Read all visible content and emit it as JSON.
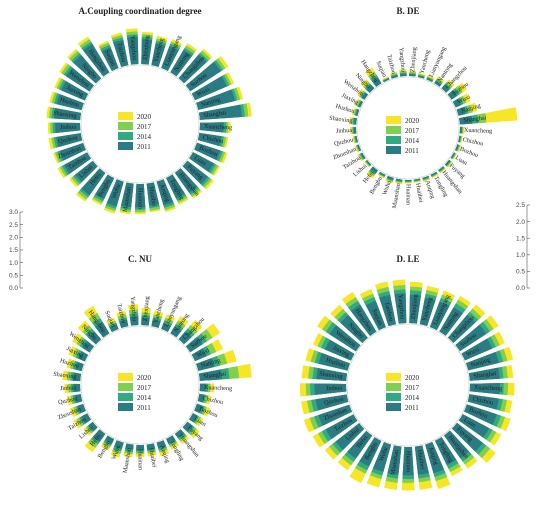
{
  "colors": {
    "2020": "#f7e626",
    "2017": "#7fcf50",
    "2014": "#31a981",
    "2011": "#2a7b84"
  },
  "legend": [
    "2020",
    "2017",
    "2014",
    "2011"
  ],
  "cities": [
    "Yangzhou",
    "Zhenjiang",
    "Yancheng",
    "Lianyungang",
    "Nantong",
    "Changzhou",
    "Suzhou",
    "Wuxi",
    "Nanjing",
    "Shanghai",
    "Xuancheng",
    "Chizhou",
    "Bozhou",
    "Luan",
    "Fuyang",
    "Huangshan",
    "Tongling",
    "Anqing",
    "Huaibei",
    "Huainan",
    "Maanshan",
    "Wuhu",
    "Bengbu",
    "Hefei",
    "Lishui",
    "Taizhou",
    "Zhoushan",
    "Quzhou",
    "Jinhua",
    "Shaoxing",
    "Huzhou",
    "Jiaxing",
    "Wenzhou",
    "Ningbo",
    "Hangzhou",
    "Suqian",
    "Taizhou"
  ],
  "scales": [
    {
      "ticks": [
        "3.0",
        "2.5",
        "2.0",
        "1.5",
        "1.0",
        "0.5",
        "0.0"
      ]
    },
    {
      "ticks": [
        "2.5",
        "2.0",
        "1.5",
        "1.0",
        "0.5",
        "0.0"
      ]
    }
  ],
  "chart_data": [
    {
      "type": "radial-bar",
      "title": "A.Coupling coordination degree",
      "series": [
        {
          "name": "2011",
          "values": [
            0.55,
            0.5,
            0.45,
            0.47,
            0.52,
            0.62,
            0.74,
            0.7,
            0.76,
            0.85,
            0.48,
            0.45,
            0.5,
            0.48,
            0.52,
            0.5,
            0.46,
            0.5,
            0.45,
            0.47,
            0.48,
            0.52,
            0.47,
            0.55,
            0.45,
            0.53,
            0.5,
            0.5,
            0.5,
            0.53,
            0.52,
            0.52,
            0.57,
            0.62,
            0.67,
            0.45,
            0.52
          ]
        },
        {
          "name": "2014",
          "values": [
            0.6,
            0.55,
            0.5,
            0.52,
            0.57,
            0.67,
            0.79,
            0.75,
            0.81,
            0.91,
            0.53,
            0.5,
            0.55,
            0.53,
            0.57,
            0.55,
            0.51,
            0.55,
            0.5,
            0.52,
            0.53,
            0.57,
            0.52,
            0.6,
            0.5,
            0.58,
            0.55,
            0.55,
            0.55,
            0.58,
            0.57,
            0.57,
            0.62,
            0.67,
            0.72,
            0.5,
            0.57
          ]
        },
        {
          "name": "2017",
          "values": [
            0.66,
            0.6,
            0.55,
            0.57,
            0.63,
            0.73,
            0.85,
            0.8,
            0.87,
            0.98,
            0.57,
            0.55,
            0.6,
            0.58,
            0.62,
            0.6,
            0.56,
            0.6,
            0.55,
            0.57,
            0.58,
            0.62,
            0.57,
            0.66,
            0.55,
            0.63,
            0.6,
            0.6,
            0.6,
            0.63,
            0.62,
            0.62,
            0.68,
            0.73,
            0.78,
            0.55,
            0.62
          ]
        },
        {
          "name": "2020",
          "values": [
            0.72,
            0.65,
            0.6,
            0.62,
            0.68,
            0.78,
            0.92,
            0.86,
            0.93,
            1.05,
            0.62,
            0.59,
            0.65,
            0.62,
            0.67,
            0.64,
            0.6,
            0.64,
            0.58,
            0.61,
            0.62,
            0.67,
            0.61,
            0.71,
            0.6,
            0.68,
            0.64,
            0.66,
            0.65,
            0.68,
            0.67,
            0.67,
            0.73,
            0.78,
            0.84,
            0.59,
            0.67
          ]
        }
      ]
    },
    {
      "type": "radial-bar",
      "title": "B. DE",
      "series": [
        {
          "name": "2011",
          "values": [
            0.1,
            0.08,
            0.06,
            0.06,
            0.12,
            0.2,
            0.3,
            0.25,
            0.32,
            0.55,
            0.07,
            0.05,
            0.06,
            0.05,
            0.07,
            0.06,
            0.06,
            0.06,
            0.05,
            0.05,
            0.07,
            0.09,
            0.06,
            0.15,
            0.05,
            0.08,
            0.06,
            0.06,
            0.09,
            0.1,
            0.08,
            0.09,
            0.14,
            0.2,
            0.3,
            0.05,
            0.08
          ]
        },
        {
          "name": "2014",
          "values": [
            0.15,
            0.12,
            0.09,
            0.1,
            0.18,
            0.28,
            0.42,
            0.36,
            0.45,
            0.8,
            0.1,
            0.08,
            0.09,
            0.08,
            0.1,
            0.09,
            0.09,
            0.09,
            0.07,
            0.08,
            0.1,
            0.13,
            0.09,
            0.22,
            0.08,
            0.12,
            0.09,
            0.09,
            0.13,
            0.15,
            0.12,
            0.13,
            0.2,
            0.28,
            0.42,
            0.07,
            0.12
          ]
        },
        {
          "name": "2017",
          "values": [
            0.22,
            0.18,
            0.13,
            0.14,
            0.25,
            0.38,
            0.58,
            0.5,
            0.62,
            1.15,
            0.14,
            0.11,
            0.13,
            0.11,
            0.14,
            0.12,
            0.12,
            0.13,
            0.1,
            0.11,
            0.14,
            0.18,
            0.12,
            0.3,
            0.11,
            0.17,
            0.13,
            0.13,
            0.18,
            0.21,
            0.17,
            0.19,
            0.28,
            0.38,
            0.58,
            0.1,
            0.17
          ]
        },
        {
          "name": "2020",
          "values": [
            0.3,
            0.25,
            0.18,
            0.2,
            0.34,
            0.5,
            0.8,
            0.7,
            0.85,
            2.5,
            0.19,
            0.15,
            0.18,
            0.15,
            0.19,
            0.17,
            0.16,
            0.18,
            0.14,
            0.15,
            0.19,
            0.25,
            0.17,
            0.42,
            0.15,
            0.23,
            0.18,
            0.18,
            0.25,
            0.3,
            0.24,
            0.26,
            0.38,
            0.52,
            0.8,
            0.14,
            0.23
          ]
        }
      ]
    },
    {
      "type": "radial-bar",
      "title": "C. NU",
      "series": [
        {
          "name": "2011",
          "values": [
            0.12,
            0.1,
            0.09,
            0.09,
            0.11,
            0.14,
            0.2,
            0.17,
            0.22,
            0.3,
            0.08,
            0.07,
            0.08,
            0.07,
            0.09,
            0.07,
            0.07,
            0.08,
            0.07,
            0.07,
            0.07,
            0.09,
            0.07,
            0.13,
            0.07,
            0.09,
            0.08,
            0.08,
            0.09,
            0.1,
            0.09,
            0.1,
            0.12,
            0.14,
            0.18,
            0.07,
            0.09
          ]
        },
        {
          "name": "2014",
          "values": [
            0.16,
            0.13,
            0.12,
            0.12,
            0.15,
            0.19,
            0.27,
            0.23,
            0.3,
            0.4,
            0.11,
            0.09,
            0.11,
            0.09,
            0.12,
            0.1,
            0.09,
            0.11,
            0.09,
            0.09,
            0.1,
            0.12,
            0.1,
            0.17,
            0.09,
            0.12,
            0.1,
            0.11,
            0.12,
            0.13,
            0.12,
            0.13,
            0.16,
            0.19,
            0.24,
            0.09,
            0.12
          ]
        },
        {
          "name": "2017",
          "values": [
            0.21,
            0.17,
            0.16,
            0.16,
            0.2,
            0.25,
            0.36,
            0.31,
            0.4,
            0.53,
            0.14,
            0.12,
            0.14,
            0.12,
            0.16,
            0.13,
            0.12,
            0.14,
            0.12,
            0.12,
            0.13,
            0.16,
            0.13,
            0.23,
            0.12,
            0.16,
            0.14,
            0.14,
            0.16,
            0.18,
            0.16,
            0.18,
            0.21,
            0.25,
            0.32,
            0.12,
            0.16
          ]
        },
        {
          "name": "2020",
          "values": [
            0.28,
            0.23,
            0.21,
            0.21,
            0.27,
            0.34,
            0.48,
            0.41,
            0.53,
            0.7,
            0.19,
            0.16,
            0.19,
            0.16,
            0.21,
            0.17,
            0.16,
            0.19,
            0.16,
            0.16,
            0.17,
            0.21,
            0.17,
            0.3,
            0.16,
            0.21,
            0.19,
            0.19,
            0.21,
            0.24,
            0.21,
            0.24,
            0.28,
            0.33,
            0.43,
            0.16,
            0.21
          ]
        }
      ]
    },
    {
      "type": "radial-bar",
      "title": "D. LE",
      "series": [
        {
          "name": "2011",
          "values": [
            0.55,
            0.52,
            0.5,
            0.5,
            0.52,
            0.55,
            0.58,
            0.55,
            0.58,
            0.55,
            0.55,
            0.55,
            0.58,
            0.55,
            0.6,
            0.52,
            0.5,
            0.55,
            0.52,
            0.52,
            0.52,
            0.52,
            0.52,
            0.52,
            0.55,
            0.58,
            0.6,
            0.58,
            0.58,
            0.55,
            0.55,
            0.52,
            0.58,
            0.55,
            0.58,
            0.52,
            0.55
          ]
        },
        {
          "name": "2014",
          "values": [
            0.62,
            0.6,
            0.57,
            0.57,
            0.6,
            0.62,
            0.66,
            0.62,
            0.66,
            0.62,
            0.62,
            0.62,
            0.66,
            0.62,
            0.68,
            0.59,
            0.57,
            0.62,
            0.59,
            0.59,
            0.59,
            0.59,
            0.6,
            0.59,
            0.62,
            0.66,
            0.68,
            0.66,
            0.66,
            0.62,
            0.62,
            0.6,
            0.66,
            0.62,
            0.66,
            0.59,
            0.62
          ]
        },
        {
          "name": "2017",
          "values": [
            0.7,
            0.67,
            0.64,
            0.64,
            0.68,
            0.7,
            0.74,
            0.7,
            0.74,
            0.7,
            0.7,
            0.7,
            0.74,
            0.7,
            0.77,
            0.66,
            0.64,
            0.7,
            0.66,
            0.66,
            0.67,
            0.66,
            0.67,
            0.67,
            0.7,
            0.74,
            0.77,
            0.74,
            0.74,
            0.7,
            0.7,
            0.67,
            0.74,
            0.7,
            0.74,
            0.66,
            0.7
          ]
        },
        {
          "name": "2020",
          "values": [
            0.8,
            0.76,
            0.72,
            0.72,
            0.76,
            0.8,
            0.85,
            0.8,
            0.85,
            0.8,
            0.82,
            0.8,
            0.85,
            0.8,
            0.9,
            0.75,
            0.72,
            0.85,
            0.8,
            0.8,
            0.8,
            0.82,
            0.86,
            0.78,
            0.8,
            0.85,
            0.88,
            0.85,
            0.85,
            0.82,
            0.8,
            0.76,
            0.85,
            0.8,
            0.85,
            0.75,
            0.8
          ]
        }
      ]
    }
  ]
}
